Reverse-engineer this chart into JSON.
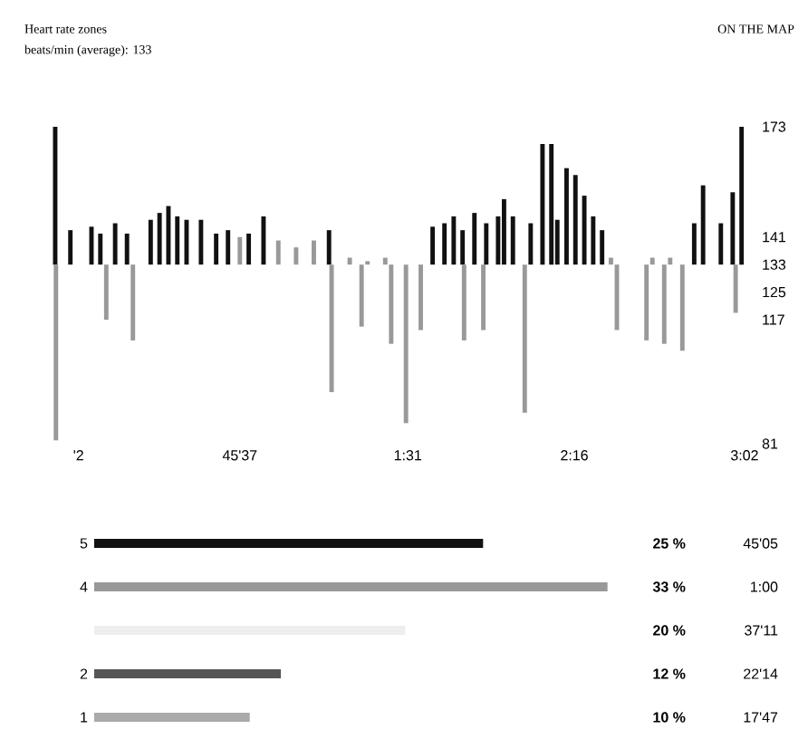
{
  "chart_data": [
    {
      "type": "bar",
      "title": "Heart rate zones",
      "subtitle": "beats/min (average): 133",
      "annotations": [
        "ON THE MAP"
      ],
      "x": [
        -4.3,
        -4.1,
        -0.2,
        5.5,
        7.9,
        9.5,
        11.9,
        15.1,
        16.7,
        21.5,
        23.9,
        26.3,
        28.7,
        31.2,
        35.1,
        39.2,
        42.4,
        45.6,
        48.0,
        52.0,
        56.0,
        60.8,
        65.6,
        69.7,
        70.4,
        75.3,
        78.5,
        80.1,
        84.9,
        86.5,
        90.5,
        94.5,
        97.7,
        100.9,
        103.4,
        105.8,
        106.2,
        109.0,
        111.4,
        112.2,
        115.4,
        117.0,
        119.4,
        122.6,
        124.2,
        127.4,
        129.8,
        131.4,
        133.9,
        136.3,
        138.7,
        141.1,
        143.5,
        145.9,
        147.5,
        155.5,
        157.1,
        160.3,
        161.9,
        165.2,
        168.4,
        170.8,
        175.6,
        178.8,
        179.6,
        181.2
      ],
      "values": [
        40,
        -51,
        10,
        11,
        9,
        -16,
        12,
        9,
        -22,
        13,
        15,
        17,
        14,
        13,
        13,
        9,
        10,
        8,
        9,
        14,
        7,
        5,
        7,
        10,
        -37,
        2,
        -18,
        1,
        2,
        -23,
        -46,
        -19,
        11,
        12,
        14,
        10,
        -22,
        15,
        -19,
        12,
        14,
        19,
        14,
        -43,
        12,
        35,
        35,
        13,
        28,
        26,
        20,
        14,
        10,
        2,
        -19,
        -22,
        2,
        -23,
        2,
        -25,
        12,
        23,
        12,
        21,
        -14,
        40
      ],
      "base": [
        133,
        133,
        133,
        133,
        133,
        133,
        133,
        133,
        133,
        133,
        133,
        133,
        133,
        133,
        133,
        133,
        133,
        133,
        133,
        133,
        133,
        133,
        133,
        133,
        133,
        133,
        133,
        133,
        133,
        133,
        133,
        133,
        133,
        133,
        133,
        133,
        133,
        133,
        133,
        133,
        133,
        133,
        133,
        133,
        133,
        133,
        133,
        133,
        133,
        133,
        133,
        133,
        133,
        133,
        133,
        133,
        133,
        133,
        133,
        133,
        133,
        133,
        133,
        133,
        133,
        133
      ],
      "colors": [
        "#111111",
        "#999999",
        "#111111",
        "#111111",
        "#111111",
        "#999999",
        "#111111",
        "#111111",
        "#999999",
        "#111111",
        "#111111",
        "#111111",
        "#111111",
        "#111111",
        "#111111",
        "#111111",
        "#111111",
        "#999999",
        "#111111",
        "#111111",
        "#999999",
        "#999999",
        "#999999",
        "#111111",
        "#999999",
        "#999999",
        "#999999",
        "#999999",
        "#999999",
        "#999999",
        "#999999",
        "#999999",
        "#111111",
        "#111111",
        "#111111",
        "#111111",
        "#999999",
        "#111111",
        "#999999",
        "#111111",
        "#111111",
        "#111111",
        "#111111",
        "#999999",
        "#111111",
        "#111111",
        "#111111",
        "#111111",
        "#111111",
        "#111111",
        "#111111",
        "#111111",
        "#111111",
        "#999999",
        "#999999",
        "#999999",
        "#999999",
        "#999999",
        "#999999",
        "#999999",
        "#111111",
        "#111111",
        "#111111",
        "#111111",
        "#999999",
        "#111111"
      ],
      "xlim": [
        -6,
        183
      ],
      "xticks": [
        {
          "value": 2,
          "label": "'2"
        },
        {
          "value": 45.6,
          "label": "45'37"
        },
        {
          "value": 91,
          "label": "1:31"
        },
        {
          "value": 136,
          "label": "2:16"
        },
        {
          "value": 182,
          "label": "3:02"
        }
      ],
      "ylim": [
        81,
        173
      ],
      "yticks": [
        173,
        141,
        133,
        125,
        117,
        81
      ]
    },
    {
      "type": "bar",
      "orientation": "horizontal",
      "categories": [
        "5",
        "4",
        null,
        "2",
        "1"
      ],
      "values": [
        25,
        33,
        20,
        12,
        10
      ],
      "value_labels": [
        "25 %",
        "33 %",
        "20 %",
        "12 %",
        "10 %"
      ],
      "colors": [
        "#111111",
        "#999999",
        "#eeeeee",
        "#555555",
        "#aaaaaa"
      ],
      "annotations": [
        "45'05",
        "1:00",
        "37'11",
        "22'14",
        "17'47"
      ],
      "tick_labels": "y"
    }
  ]
}
